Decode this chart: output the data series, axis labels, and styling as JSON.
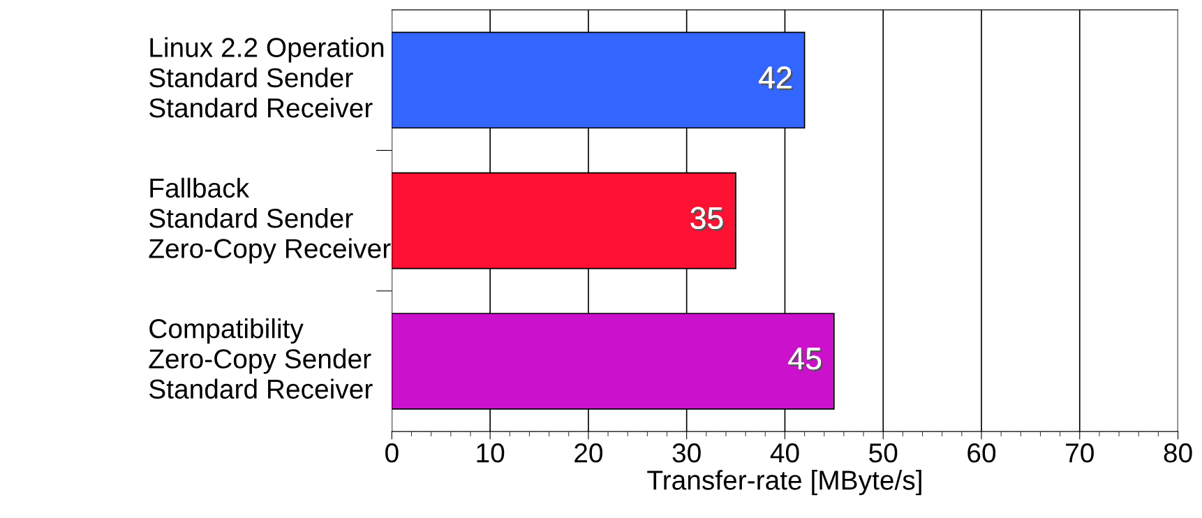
{
  "chart_data": {
    "type": "bar",
    "orientation": "horizontal",
    "xlabel": "Transfer-rate [MByte/s]",
    "categories": [
      "Linux 2.2 Operation\nStandard Sender\nStandard Receiver",
      "Fallback\nStandard Sender\nZero-Copy Receiver",
      "Compatibility\nZero-Copy Sender\nStandard Receiver"
    ],
    "values": [
      42,
      35,
      45
    ],
    "colors": [
      "#3366ff",
      "#ff1133",
      "#cc11cc"
    ],
    "xlim": [
      0,
      80
    ],
    "xticks": [
      0,
      10,
      20,
      30,
      40,
      50,
      60,
      70,
      80
    ],
    "grid": "x",
    "data_labels": true
  }
}
